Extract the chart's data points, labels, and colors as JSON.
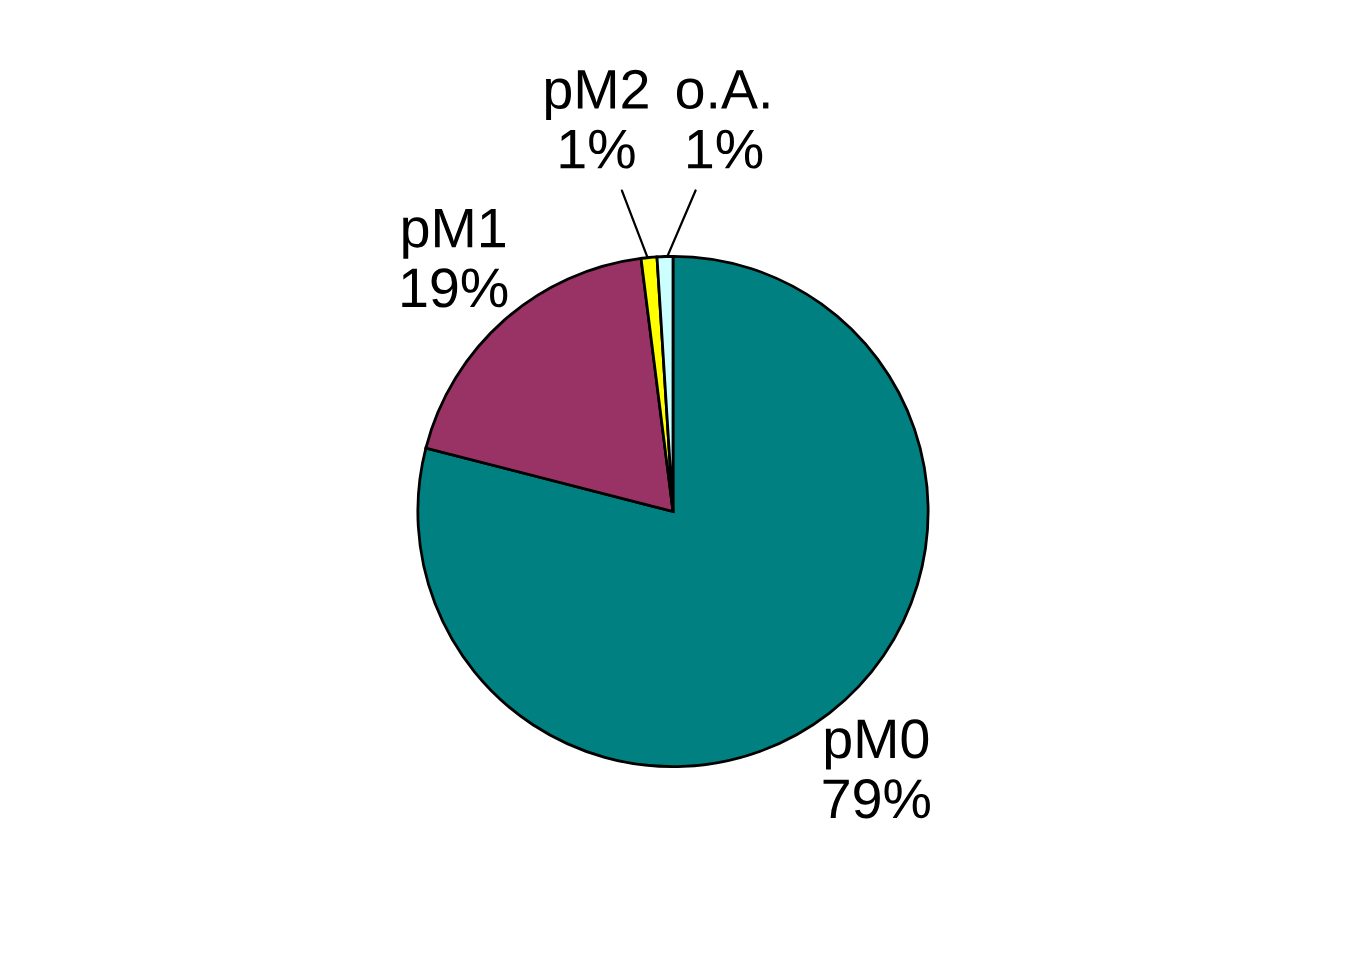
{
  "chart_data": {
    "type": "pie",
    "categories": [
      "pM0",
      "pM1",
      "pM2",
      "o.A."
    ],
    "values": [
      79,
      19,
      1,
      1
    ],
    "value_labels": [
      "79%",
      "19%",
      "1%",
      "1%"
    ],
    "colors": [
      "#008080",
      "#993366",
      "#ffff00",
      "#ccffff"
    ],
    "legend": false
  }
}
